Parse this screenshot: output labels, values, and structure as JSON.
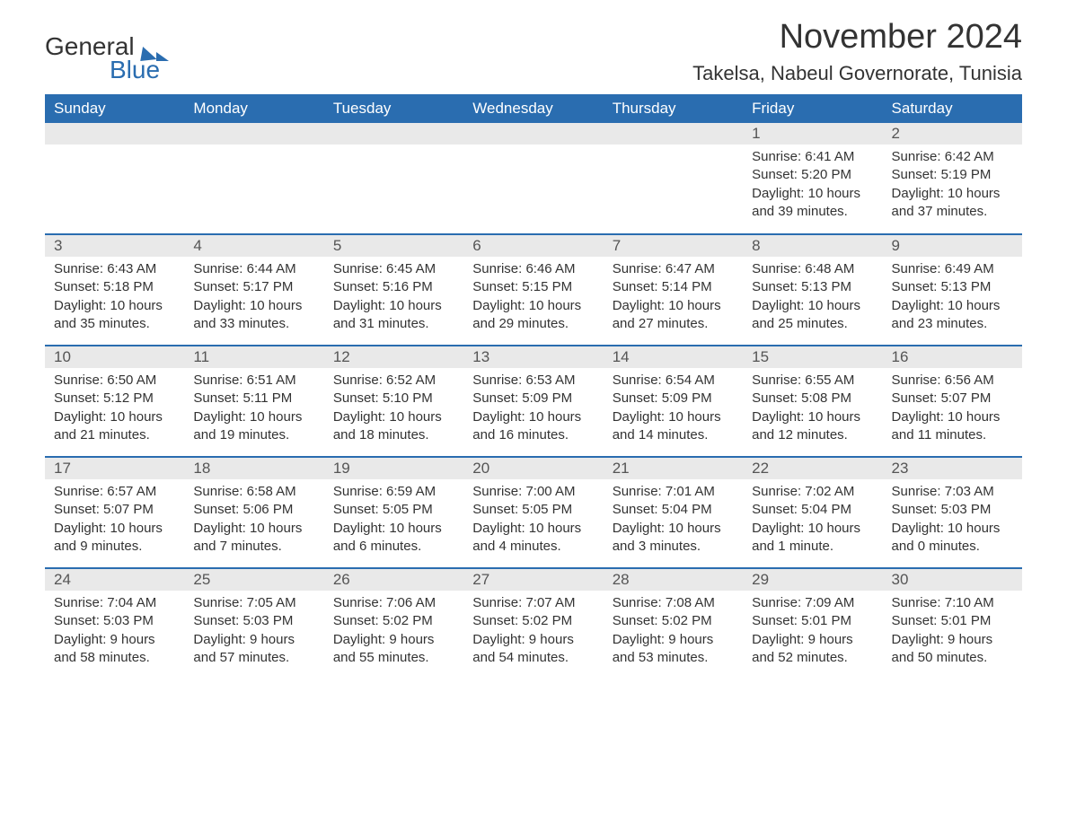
{
  "brand": {
    "word1": "General",
    "word2": "Blue"
  },
  "title": "November 2024",
  "location": "Takelsa, Nabeul Governorate, Tunisia",
  "colors": {
    "header_bg": "#2a6db0",
    "header_text": "#ffffff",
    "daynum_bg": "#e9e9e9",
    "row_divider": "#2a6db0",
    "text": "#333333",
    "background": "#ffffff"
  },
  "weekdays": [
    "Sunday",
    "Monday",
    "Tuesday",
    "Wednesday",
    "Thursday",
    "Friday",
    "Saturday"
  ],
  "weeks": [
    [
      null,
      null,
      null,
      null,
      null,
      {
        "n": "1",
        "sunrise": "Sunrise: 6:41 AM",
        "sunset": "Sunset: 5:20 PM",
        "daylight": "Daylight: 10 hours and 39 minutes."
      },
      {
        "n": "2",
        "sunrise": "Sunrise: 6:42 AM",
        "sunset": "Sunset: 5:19 PM",
        "daylight": "Daylight: 10 hours and 37 minutes."
      }
    ],
    [
      {
        "n": "3",
        "sunrise": "Sunrise: 6:43 AM",
        "sunset": "Sunset: 5:18 PM",
        "daylight": "Daylight: 10 hours and 35 minutes."
      },
      {
        "n": "4",
        "sunrise": "Sunrise: 6:44 AM",
        "sunset": "Sunset: 5:17 PM",
        "daylight": "Daylight: 10 hours and 33 minutes."
      },
      {
        "n": "5",
        "sunrise": "Sunrise: 6:45 AM",
        "sunset": "Sunset: 5:16 PM",
        "daylight": "Daylight: 10 hours and 31 minutes."
      },
      {
        "n": "6",
        "sunrise": "Sunrise: 6:46 AM",
        "sunset": "Sunset: 5:15 PM",
        "daylight": "Daylight: 10 hours and 29 minutes."
      },
      {
        "n": "7",
        "sunrise": "Sunrise: 6:47 AM",
        "sunset": "Sunset: 5:14 PM",
        "daylight": "Daylight: 10 hours and 27 minutes."
      },
      {
        "n": "8",
        "sunrise": "Sunrise: 6:48 AM",
        "sunset": "Sunset: 5:13 PM",
        "daylight": "Daylight: 10 hours and 25 minutes."
      },
      {
        "n": "9",
        "sunrise": "Sunrise: 6:49 AM",
        "sunset": "Sunset: 5:13 PM",
        "daylight": "Daylight: 10 hours and 23 minutes."
      }
    ],
    [
      {
        "n": "10",
        "sunrise": "Sunrise: 6:50 AM",
        "sunset": "Sunset: 5:12 PM",
        "daylight": "Daylight: 10 hours and 21 minutes."
      },
      {
        "n": "11",
        "sunrise": "Sunrise: 6:51 AM",
        "sunset": "Sunset: 5:11 PM",
        "daylight": "Daylight: 10 hours and 19 minutes."
      },
      {
        "n": "12",
        "sunrise": "Sunrise: 6:52 AM",
        "sunset": "Sunset: 5:10 PM",
        "daylight": "Daylight: 10 hours and 18 minutes."
      },
      {
        "n": "13",
        "sunrise": "Sunrise: 6:53 AM",
        "sunset": "Sunset: 5:09 PM",
        "daylight": "Daylight: 10 hours and 16 minutes."
      },
      {
        "n": "14",
        "sunrise": "Sunrise: 6:54 AM",
        "sunset": "Sunset: 5:09 PM",
        "daylight": "Daylight: 10 hours and 14 minutes."
      },
      {
        "n": "15",
        "sunrise": "Sunrise: 6:55 AM",
        "sunset": "Sunset: 5:08 PM",
        "daylight": "Daylight: 10 hours and 12 minutes."
      },
      {
        "n": "16",
        "sunrise": "Sunrise: 6:56 AM",
        "sunset": "Sunset: 5:07 PM",
        "daylight": "Daylight: 10 hours and 11 minutes."
      }
    ],
    [
      {
        "n": "17",
        "sunrise": "Sunrise: 6:57 AM",
        "sunset": "Sunset: 5:07 PM",
        "daylight": "Daylight: 10 hours and 9 minutes."
      },
      {
        "n": "18",
        "sunrise": "Sunrise: 6:58 AM",
        "sunset": "Sunset: 5:06 PM",
        "daylight": "Daylight: 10 hours and 7 minutes."
      },
      {
        "n": "19",
        "sunrise": "Sunrise: 6:59 AM",
        "sunset": "Sunset: 5:05 PM",
        "daylight": "Daylight: 10 hours and 6 minutes."
      },
      {
        "n": "20",
        "sunrise": "Sunrise: 7:00 AM",
        "sunset": "Sunset: 5:05 PM",
        "daylight": "Daylight: 10 hours and 4 minutes."
      },
      {
        "n": "21",
        "sunrise": "Sunrise: 7:01 AM",
        "sunset": "Sunset: 5:04 PM",
        "daylight": "Daylight: 10 hours and 3 minutes."
      },
      {
        "n": "22",
        "sunrise": "Sunrise: 7:02 AM",
        "sunset": "Sunset: 5:04 PM",
        "daylight": "Daylight: 10 hours and 1 minute."
      },
      {
        "n": "23",
        "sunrise": "Sunrise: 7:03 AM",
        "sunset": "Sunset: 5:03 PM",
        "daylight": "Daylight: 10 hours and 0 minutes."
      }
    ],
    [
      {
        "n": "24",
        "sunrise": "Sunrise: 7:04 AM",
        "sunset": "Sunset: 5:03 PM",
        "daylight": "Daylight: 9 hours and 58 minutes."
      },
      {
        "n": "25",
        "sunrise": "Sunrise: 7:05 AM",
        "sunset": "Sunset: 5:03 PM",
        "daylight": "Daylight: 9 hours and 57 minutes."
      },
      {
        "n": "26",
        "sunrise": "Sunrise: 7:06 AM",
        "sunset": "Sunset: 5:02 PM",
        "daylight": "Daylight: 9 hours and 55 minutes."
      },
      {
        "n": "27",
        "sunrise": "Sunrise: 7:07 AM",
        "sunset": "Sunset: 5:02 PM",
        "daylight": "Daylight: 9 hours and 54 minutes."
      },
      {
        "n": "28",
        "sunrise": "Sunrise: 7:08 AM",
        "sunset": "Sunset: 5:02 PM",
        "daylight": "Daylight: 9 hours and 53 minutes."
      },
      {
        "n": "29",
        "sunrise": "Sunrise: 7:09 AM",
        "sunset": "Sunset: 5:01 PM",
        "daylight": "Daylight: 9 hours and 52 minutes."
      },
      {
        "n": "30",
        "sunrise": "Sunrise: 7:10 AM",
        "sunset": "Sunset: 5:01 PM",
        "daylight": "Daylight: 9 hours and 50 minutes."
      }
    ]
  ]
}
